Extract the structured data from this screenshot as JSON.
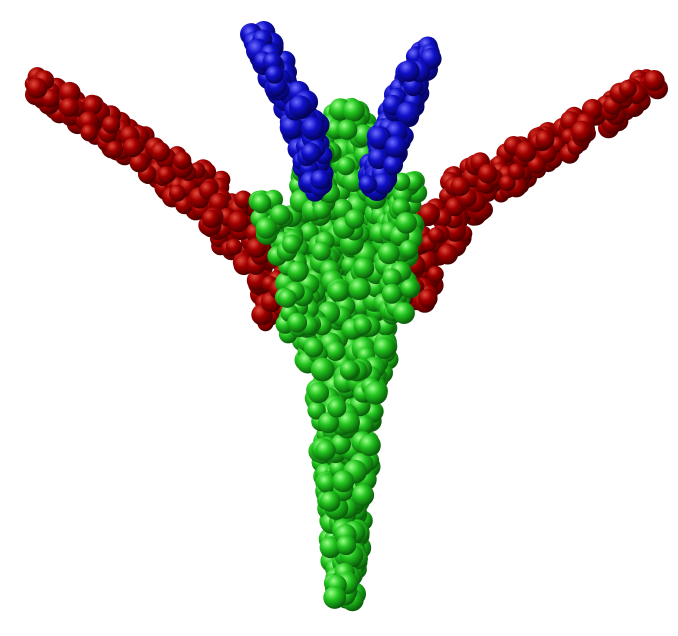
{
  "scene": {
    "background": "#ffffff",
    "object": "point-cloud-airplane",
    "segments": [
      {
        "part": "body",
        "color": "#1fc41f"
      },
      {
        "part": "wings",
        "color": "#a10000"
      },
      {
        "part": "tail",
        "color": "#1010c8"
      }
    ]
  }
}
